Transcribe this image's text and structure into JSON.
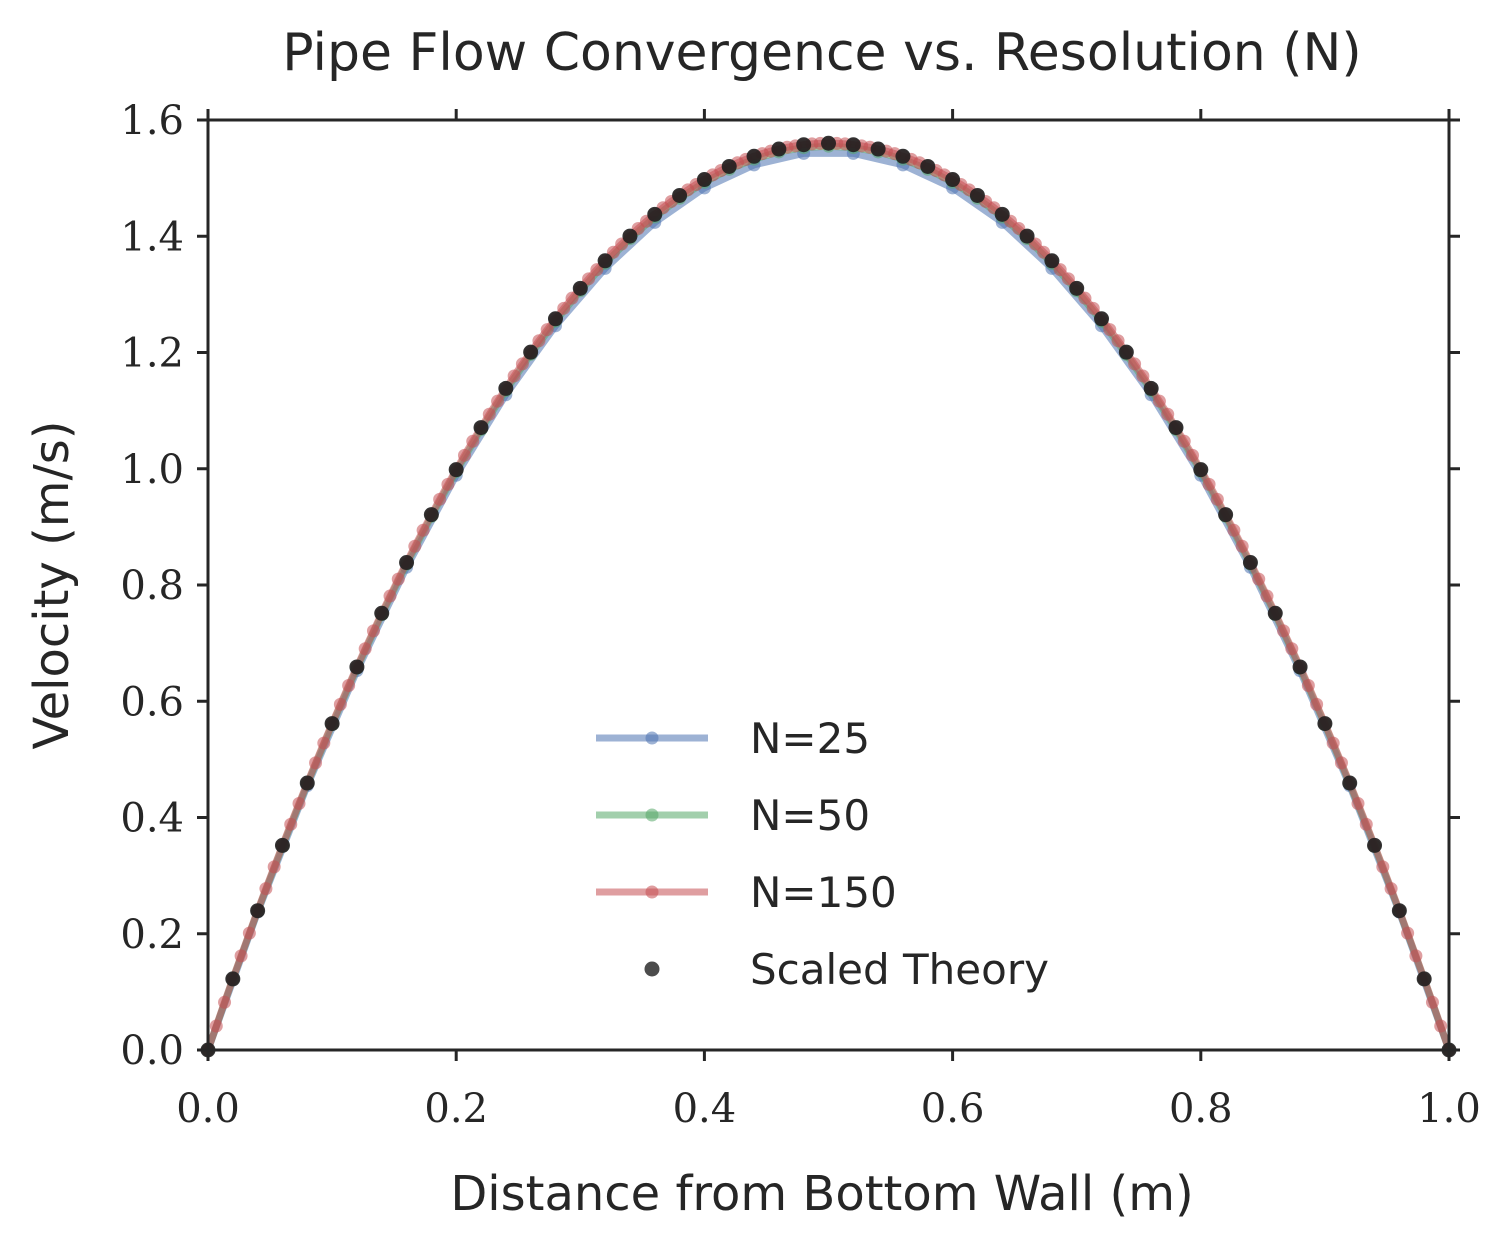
{
  "chart_data": {
    "type": "line",
    "title": "Pipe Flow Convergence vs. Resolution (N)",
    "xlabel": "Distance from Bottom Wall (m)",
    "ylabel": "Velocity (m/s)",
    "xlim": [
      0.0,
      1.0
    ],
    "ylim": [
      0.0,
      1.6
    ],
    "xticks": [
      "0.0",
      "0.2",
      "0.4",
      "0.6",
      "0.8",
      "1.0"
    ],
    "yticks": [
      "0.0",
      "0.2",
      "0.4",
      "0.6",
      "0.8",
      "1.0",
      "1.2",
      "1.4",
      "1.6"
    ],
    "grid": false,
    "legend_position": "lower center",
    "profile": {
      "centerline_velocity": 1.56,
      "shape": "parabolic u = 4·Umax·x·(1−x)"
    },
    "series": [
      {
        "name": "N=25",
        "n": 25,
        "peak": 1.545,
        "color": "#4c72b0",
        "style": "line-marker"
      },
      {
        "name": "N=50",
        "n": 50,
        "peak": 1.555,
        "color": "#55a868",
        "style": "line-marker"
      },
      {
        "name": "N=150",
        "n": 150,
        "peak": 1.56,
        "color": "#c44e52",
        "style": "line-marker"
      },
      {
        "name": "Scaled Theory",
        "n": 50,
        "peak": 1.56,
        "color": "#1f1f1f",
        "style": "marker"
      }
    ]
  }
}
